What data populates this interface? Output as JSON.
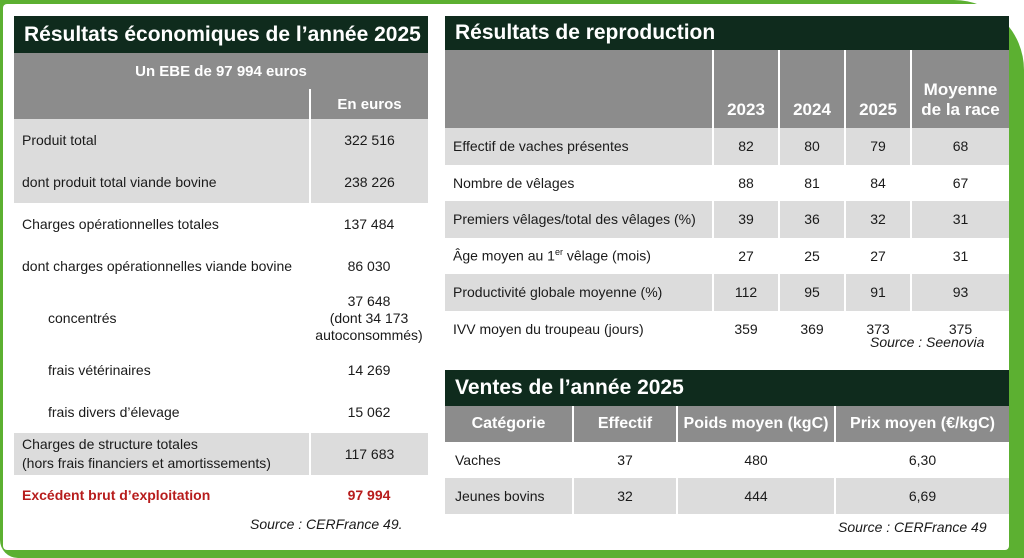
{
  "left": {
    "title": "Résultats économiques de l’année 2025",
    "subtitle": "Un EBE de 97 994 euros",
    "unit_header": "En euros",
    "rows": [
      {
        "label": "Produit total",
        "value": "322 516"
      },
      {
        "label": "dont produit total viande bovine",
        "value": "238 226"
      },
      {
        "label": "Charges opérationnelles totales",
        "value": "137 484"
      },
      {
        "label": "dont charges opérationnelles viande bovine",
        "value": "86 030"
      },
      {
        "label": "concentrés",
        "value_line1": "37 648",
        "value_line2": "(dont 34 173",
        "value_line3": "autoconsommés)"
      },
      {
        "label": "frais vétérinaires",
        "value": "14 269"
      },
      {
        "label": "frais divers d’élevage",
        "value": "15 062"
      },
      {
        "label_line1": "Charges de structure totales",
        "label_line2": "(hors frais financiers et amortissements)",
        "value": "117 683"
      },
      {
        "label": "Excédent brut d’exploitation",
        "value": "97 994"
      }
    ],
    "source": "Source : CERFrance 49."
  },
  "repro": {
    "title": "Résultats de reproduction",
    "headers": [
      "2023",
      "2024",
      "2025"
    ],
    "header_avg_line1": "Moyenne",
    "header_avg_line2": "de la race",
    "rows": [
      {
        "label": "Effectif de vaches présentes",
        "v": [
          "82",
          "80",
          "79",
          "68"
        ]
      },
      {
        "label": "Nombre de vêlages",
        "v": [
          "88",
          "81",
          "84",
          "67"
        ]
      },
      {
        "label": "Premiers vêlages/total des vêlages (%)",
        "v": [
          "39",
          "36",
          "32",
          "31"
        ]
      },
      {
        "label_pre": "Âge moyen au 1",
        "label_sup": "er",
        "label_post": " vêlage (mois)",
        "v": [
          "27",
          "25",
          "27",
          "31"
        ]
      },
      {
        "label": "Productivité globale moyenne (%)",
        "v": [
          "112",
          "95",
          "91",
          "93"
        ]
      },
      {
        "label": "IVV moyen du troupeau (jours)",
        "v": [
          "359",
          "369",
          "373",
          "375"
        ]
      }
    ],
    "source": "Source : Seenovia"
  },
  "ventes": {
    "title": "Ventes de l’année 2025",
    "headers": [
      "Catégorie",
      "Effectif",
      "Poids moyen (kgC)",
      "Prix moyen (€/kgC)"
    ],
    "rows": [
      {
        "cat": "Vaches",
        "effectif": "37",
        "poids": "480",
        "prix": "6,30"
      },
      {
        "cat": "Jeunes bovins",
        "effectif": "32",
        "poids": "444",
        "prix": "6,69"
      }
    ],
    "source": "Source : CERFrance 49"
  },
  "colors": {
    "accent_green": "#5cb031",
    "title_bg": "#0f2b1d",
    "header_grey": "#8c8c8c",
    "row_grey": "#dcdcdc",
    "highlight_red": "#b71c1c"
  }
}
